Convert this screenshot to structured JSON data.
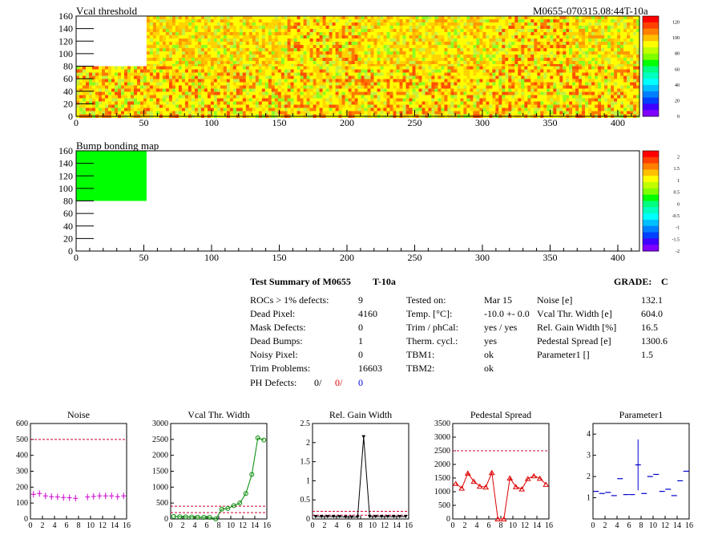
{
  "header": {
    "vcal_title": "Vcal threshold",
    "module_id": "M0655-070315.08:44T-10a",
    "bump_title": "Bump bonding map"
  },
  "maps": {
    "x_ticks": [
      "0",
      "50",
      "100",
      "150",
      "200",
      "250",
      "300",
      "350",
      "400"
    ],
    "y_ticks": [
      "0",
      "20",
      "40",
      "60",
      "80",
      "100",
      "120",
      "140",
      "160"
    ],
    "vcal_scale_ticks": [
      "0",
      "20",
      "40",
      "60",
      "80",
      "100",
      "120"
    ],
    "bump_scale_ticks": [
      "-2",
      "-1.5",
      "-1",
      "-0.5",
      "0",
      "0.5",
      "1",
      "1.5",
      "2"
    ],
    "colors": {
      "frame": "#000000",
      "empty_roc": "#ffffff",
      "bump_fill": "#00ff00"
    }
  },
  "summary": {
    "title": "Test Summary of M0655",
    "tag": "T-10a",
    "grade_label": "GRADE:",
    "grade": "C",
    "col1": [
      {
        "label": "ROCs > 1% defects:",
        "value": "9"
      },
      {
        "label": "Dead Pixel:",
        "value": "4160"
      },
      {
        "label": "Mask Defects:",
        "value": "0"
      },
      {
        "label": "Dead Bumps:",
        "value": "1"
      },
      {
        "label": "Noisy Pixel:",
        "value": "0"
      },
      {
        "label": "Trim Problems:",
        "value": "16603"
      }
    ],
    "ph_defects": {
      "label": "PH Defects:",
      "v1": "0/",
      "v2": "0/",
      "v3": "0"
    },
    "col2": [
      {
        "label": "Tested on:",
        "value": "Mar 15"
      },
      {
        "label": "Temp. [°C]:",
        "value": "-10.0 +- 0.0"
      },
      {
        "label": "Trim / phCal:",
        "value": "yes / yes"
      },
      {
        "label": "Therm. cycl.:",
        "value": "yes"
      },
      {
        "label": "TBM1:",
        "value": "ok"
      },
      {
        "label": "TBM2:",
        "value": "ok"
      }
    ],
    "col3": [
      {
        "label": "Noise [e]",
        "value": "132.1"
      },
      {
        "label": "Vcal Thr. Width [e]",
        "value": "604.0"
      },
      {
        "label": "Rel. Gain Width [%]",
        "value": "16.5"
      },
      {
        "label": "Pedestal Spread [e]",
        "value": "1300.6"
      },
      {
        "label": "Parameter1 []",
        "value": "1.5"
      }
    ]
  },
  "chart_data": [
    {
      "type": "scatter",
      "title": "Noise",
      "x": [
        0,
        1,
        2,
        3,
        4,
        5,
        6,
        7,
        8,
        9,
        10,
        11,
        12,
        13,
        14,
        15
      ],
      "values": [
        155,
        160,
        145,
        140,
        138,
        135,
        133,
        130,
        null,
        138,
        142,
        145,
        145,
        145,
        140,
        145
      ],
      "xlim": [
        0,
        16
      ],
      "ylim": [
        0,
        600
      ],
      "yticks": [
        0,
        100,
        200,
        300,
        400,
        500,
        600
      ],
      "xticks": [
        0,
        2,
        4,
        6,
        8,
        10,
        12,
        14,
        16
      ],
      "threshold_lines": [
        500
      ],
      "style": "cross",
      "color": "#cc00cc"
    },
    {
      "type": "line",
      "title": "Vcal Thr. Width",
      "x": [
        0,
        1,
        2,
        3,
        4,
        5,
        6,
        7,
        8,
        9,
        10,
        11,
        12,
        13,
        14,
        15
      ],
      "values": [
        80,
        70,
        65,
        60,
        55,
        50,
        50,
        0,
        310,
        330,
        420,
        500,
        800,
        1400,
        2550,
        2480
      ],
      "xlim": [
        0,
        16
      ],
      "ylim": [
        0,
        3000
      ],
      "yticks": [
        0,
        500,
        1000,
        1500,
        2000,
        2500,
        3000
      ],
      "xticks": [
        0,
        2,
        4,
        6,
        8,
        10,
        12,
        14,
        16
      ],
      "threshold_lines": [
        200,
        400
      ],
      "style": "circle",
      "color": "#008800"
    },
    {
      "type": "line",
      "title": "Rel. Gain Width",
      "x": [
        0,
        1,
        2,
        3,
        4,
        5,
        6,
        7,
        8,
        9,
        10,
        11,
        12,
        13,
        14,
        15
      ],
      "values": [
        0.06,
        0.06,
        0.06,
        0.06,
        0.06,
        0.05,
        0.05,
        0.05,
        2.15,
        0.06,
        0.06,
        0.06,
        0.06,
        0.06,
        0.06,
        0.06
      ],
      "xlim": [
        0,
        16
      ],
      "ylim": [
        0,
        2.5
      ],
      "yticks": [
        0,
        0.5,
        1,
        1.5,
        2,
        2.5
      ],
      "xticks": [
        0,
        2,
        4,
        6,
        8,
        10,
        12,
        14,
        16
      ],
      "threshold_lines": [
        0.1,
        0.2
      ],
      "style": "triangle-down",
      "color": "#000000"
    },
    {
      "type": "line",
      "title": "Pedestal Spread",
      "x": [
        0,
        1,
        2,
        3,
        4,
        5,
        6,
        7,
        8,
        9,
        10,
        11,
        12,
        13,
        14,
        15
      ],
      "values": [
        1300,
        1130,
        1680,
        1380,
        1200,
        1170,
        1700,
        0,
        0,
        1500,
        1180,
        1100,
        1480,
        1580,
        1490,
        1270
      ],
      "xlim": [
        0,
        16
      ],
      "ylim": [
        0,
        3500
      ],
      "yticks": [
        0,
        500,
        1000,
        1500,
        2000,
        2500,
        3000,
        3500
      ],
      "xticks": [
        0,
        2,
        4,
        6,
        8,
        10,
        12,
        14,
        16
      ],
      "threshold_lines": [
        2500
      ],
      "style": "triangle-up",
      "color": "#dd0000"
    },
    {
      "type": "scatter",
      "title": "Parameter1",
      "x": [
        0,
        1,
        2,
        3,
        4,
        5,
        6,
        7,
        8,
        9,
        10,
        11,
        12,
        13,
        14,
        15
      ],
      "values": [
        1.3,
        1.2,
        1.25,
        1.1,
        1.9,
        1.15,
        1.15,
        2.55,
        1.2,
        2.0,
        2.1,
        1.3,
        1.4,
        1.1,
        1.8,
        2.25
      ],
      "errors": [
        0,
        0,
        0,
        0,
        0,
        0,
        0,
        1.2,
        0,
        0,
        0,
        0,
        0,
        0,
        0,
        0
      ],
      "xlim": [
        0,
        16
      ],
      "ylim": [
        0,
        4.5
      ],
      "yticks": [
        1,
        2,
        3,
        4
      ],
      "xticks": [
        0,
        2,
        4,
        6,
        8,
        10,
        12,
        14,
        16
      ],
      "threshold_lines": [],
      "style": "hline",
      "color": "#0000cc"
    }
  ]
}
